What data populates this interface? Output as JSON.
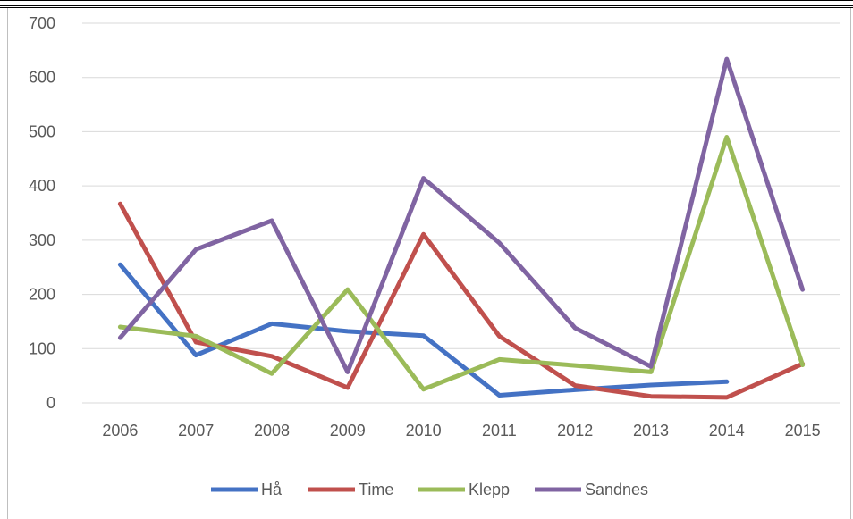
{
  "chart_data": {
    "type": "line",
    "title": "",
    "xlabel": "",
    "ylabel": "",
    "categories": [
      "2006",
      "2007",
      "2008",
      "2009",
      "2010",
      "2011",
      "2012",
      "2013",
      "2014",
      "2015"
    ],
    "ylim": [
      0,
      700
    ],
    "yticks": [
      "0",
      "100",
      "200",
      "300",
      "400",
      "500",
      "600",
      "700"
    ],
    "grid": true,
    "legend_position": "bottom",
    "series": [
      {
        "name": "Hå",
        "color": "#4472C4",
        "values": [
          255,
          88,
          146,
          132,
          124,
          14,
          24,
          33,
          39,
          null
        ]
      },
      {
        "name": "Time",
        "color": "#C0504D",
        "values": [
          367,
          112,
          86,
          28,
          311,
          123,
          32,
          12,
          10,
          72
        ]
      },
      {
        "name": "Klepp",
        "color": "#9BBB59",
        "values": [
          140,
          123,
          54,
          209,
          25,
          80,
          69,
          57,
          490,
          70
        ]
      },
      {
        "name": "Sandnes",
        "color": "#8064A2",
        "values": [
          120,
          283,
          336,
          57,
          414,
          295,
          138,
          67,
          634,
          209
        ]
      }
    ]
  }
}
